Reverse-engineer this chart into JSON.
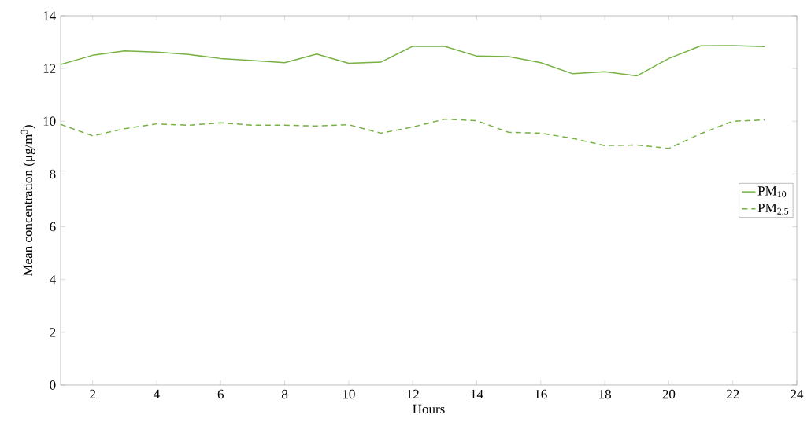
{
  "chart_data": {
    "type": "line",
    "xlabel": "Hours",
    "ylabel": "Mean concentration (μg/m$^{3}$)",
    "x": [
      1,
      2,
      3,
      4,
      5,
      6,
      7,
      8,
      9,
      10,
      11,
      12,
      13,
      14,
      15,
      16,
      17,
      18,
      19,
      20,
      21,
      22,
      23
    ],
    "series": [
      {
        "name": "PM$_{10}$",
        "color": "#77b144",
        "line_style": "solid",
        "values": [
          12.15,
          12.5,
          12.67,
          12.62,
          12.53,
          12.38,
          12.3,
          12.22,
          12.55,
          12.2,
          12.24,
          12.84,
          12.84,
          12.47,
          12.45,
          12.22,
          11.8,
          11.88,
          11.72,
          12.38,
          12.86,
          12.87,
          12.83
        ]
      },
      {
        "name": "PM$_{2.5}$",
        "color": "#77b144",
        "line_style": "dashed",
        "values": [
          9.88,
          9.45,
          9.72,
          9.9,
          9.85,
          9.94,
          9.85,
          9.85,
          9.82,
          9.87,
          9.55,
          9.78,
          10.08,
          10.02,
          9.58,
          9.55,
          9.35,
          9.08,
          9.1,
          8.97,
          9.53,
          10.0,
          10.05
        ]
      }
    ],
    "xlim": [
      1,
      24
    ],
    "xticks": [
      2,
      4,
      6,
      8,
      10,
      12,
      14,
      16,
      18,
      20,
      22,
      24
    ],
    "ylim": [
      0,
      14
    ],
    "yticks": [
      0,
      2,
      4,
      6,
      8,
      10,
      12,
      14
    ],
    "grid": false,
    "legend": "right",
    "marker": "none"
  }
}
